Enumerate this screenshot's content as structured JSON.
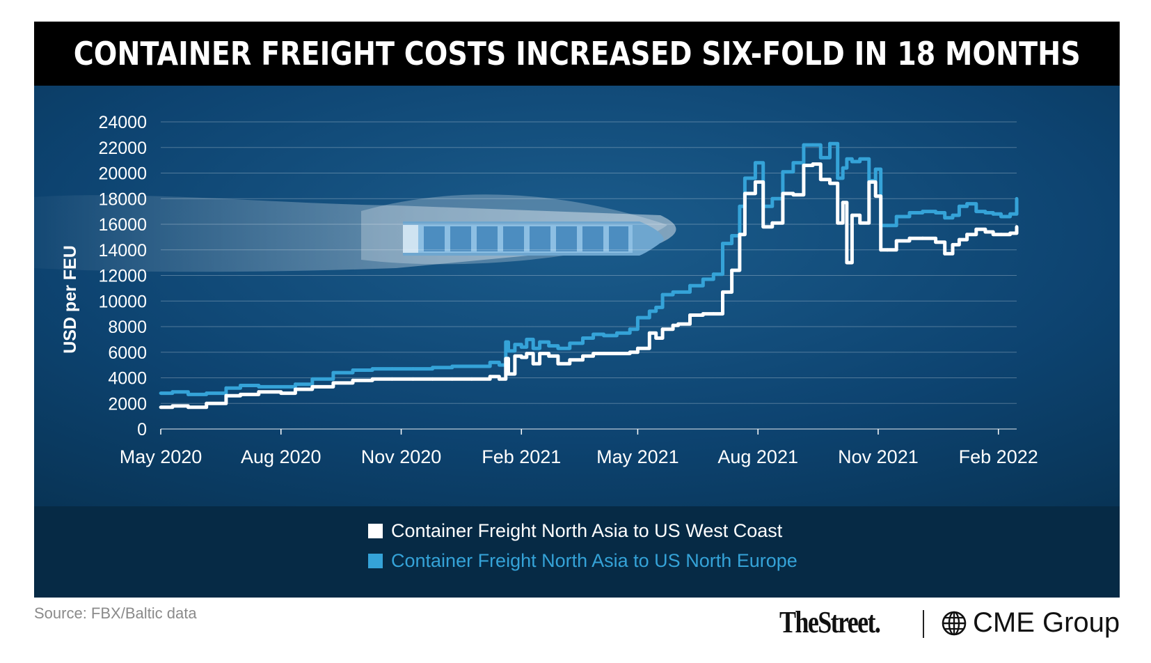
{
  "title": "CONTAINER FREIGHT COSTS INCREASED SIX-FOLD IN 18 MONTHS",
  "source": "Source: FBX/Baltic data",
  "logos": {
    "thestreet": "TheStreet.",
    "cme": "CME Group",
    "cme_icon": "globe-icon"
  },
  "colors": {
    "white_series": "#ffffff",
    "blue_series": "#35a3d8",
    "title_bg": "#000000",
    "panel_bg": "#0b3b62",
    "legend_bg": "#062a45"
  },
  "chart_data": {
    "type": "line",
    "title": "CONTAINER FREIGHT COSTS INCREASED SIX-FOLD IN 18 MONTHS",
    "xlabel": "",
    "ylabel": "USD per FEU",
    "ylim": [
      0,
      24000
    ],
    "yticks": [
      0,
      2000,
      4000,
      6000,
      8000,
      10000,
      12000,
      14000,
      16000,
      18000,
      20000,
      22000,
      24000
    ],
    "xlim": [
      "2020-05-01",
      "2022-02-15"
    ],
    "xticks": [
      {
        "label": "May 2020",
        "date": "2020-05-01"
      },
      {
        "label": "Aug 2020",
        "date": "2020-08-01"
      },
      {
        "label": "Nov 2020",
        "date": "2020-11-01"
      },
      {
        "label": "Feb 2021",
        "date": "2021-02-01"
      },
      {
        "label": "May 2021",
        "date": "2021-05-01"
      },
      {
        "label": "Aug 2021",
        "date": "2021-08-01"
      },
      {
        "label": "Nov 2021",
        "date": "2021-11-01"
      },
      {
        "label": "Feb 2022",
        "date": "2022-02-01"
      }
    ],
    "grid": true,
    "legend_position": "bottom",
    "series": [
      {
        "name": "Container Freight North Asia to US West Coast",
        "color": "#ffffff",
        "x": [
          "2020-05-01",
          "2020-05-10",
          "2020-05-22",
          "2020-06-05",
          "2020-06-20",
          "2020-07-01",
          "2020-07-15",
          "2020-08-01",
          "2020-08-12",
          "2020-08-25",
          "2020-09-10",
          "2020-09-25",
          "2020-10-10",
          "2020-10-25",
          "2020-11-10",
          "2020-11-25",
          "2020-12-10",
          "2020-12-25",
          "2021-01-08",
          "2021-01-15",
          "2021-01-20",
          "2021-01-22",
          "2021-01-27",
          "2021-02-01",
          "2021-02-05",
          "2021-02-10",
          "2021-02-15",
          "2021-02-22",
          "2021-03-01",
          "2021-03-10",
          "2021-03-20",
          "2021-03-28",
          "2021-04-05",
          "2021-04-15",
          "2021-04-25",
          "2021-05-01",
          "2021-05-10",
          "2021-05-15",
          "2021-05-20",
          "2021-05-28",
          "2021-06-01",
          "2021-06-10",
          "2021-06-20",
          "2021-06-28",
          "2021-07-05",
          "2021-07-12",
          "2021-07-18",
          "2021-07-22",
          "2021-07-30",
          "2021-08-05",
          "2021-08-12",
          "2021-08-20",
          "2021-08-28",
          "2021-09-05",
          "2021-09-12",
          "2021-09-18",
          "2021-09-25",
          "2021-10-01",
          "2021-10-05",
          "2021-10-08",
          "2021-10-12",
          "2021-10-18",
          "2021-10-25",
          "2021-10-30",
          "2021-11-03",
          "2021-11-08",
          "2021-11-15",
          "2021-11-25",
          "2021-12-05",
          "2021-12-15",
          "2021-12-22",
          "2021-12-28",
          "2022-01-02",
          "2022-01-08",
          "2022-01-15",
          "2022-01-22",
          "2022-01-28",
          "2022-02-03",
          "2022-02-10",
          "2022-02-15"
        ],
        "values": [
          1700,
          1800,
          1700,
          2000,
          2600,
          2700,
          2900,
          2800,
          3100,
          3300,
          3600,
          3800,
          3900,
          3900,
          3900,
          3900,
          3900,
          3900,
          4100,
          3900,
          5500,
          4300,
          5700,
          5600,
          5900,
          5100,
          5900,
          5700,
          5100,
          5400,
          5700,
          5900,
          5900,
          5900,
          6000,
          6300,
          7500,
          7100,
          7800,
          8100,
          8200,
          8900,
          9000,
          9000,
          10700,
          12400,
          15200,
          18400,
          19300,
          15800,
          16100,
          18400,
          18300,
          20600,
          20700,
          19500,
          19200,
          16100,
          17700,
          13000,
          16700,
          16100,
          19300,
          18200,
          14000,
          14000,
          14700,
          14900,
          14900,
          14600,
          13700,
          14400,
          14800,
          15200,
          15600,
          15400,
          15200,
          15200,
          15300,
          15800
        ]
      },
      {
        "name": "Container Freight North Asia to US North Europe",
        "color": "#35a3d8",
        "x": [
          "2020-05-01",
          "2020-05-10",
          "2020-05-22",
          "2020-06-05",
          "2020-06-20",
          "2020-07-01",
          "2020-07-15",
          "2020-08-01",
          "2020-08-12",
          "2020-08-25",
          "2020-09-10",
          "2020-09-25",
          "2020-10-10",
          "2020-10-25",
          "2020-11-10",
          "2020-11-25",
          "2020-12-10",
          "2020-12-25",
          "2021-01-08",
          "2021-01-15",
          "2021-01-20",
          "2021-01-22",
          "2021-01-27",
          "2021-02-01",
          "2021-02-05",
          "2021-02-10",
          "2021-02-15",
          "2021-02-22",
          "2021-03-01",
          "2021-03-10",
          "2021-03-20",
          "2021-03-28",
          "2021-04-05",
          "2021-04-15",
          "2021-04-25",
          "2021-05-01",
          "2021-05-10",
          "2021-05-15",
          "2021-05-20",
          "2021-05-28",
          "2021-06-01",
          "2021-06-10",
          "2021-06-20",
          "2021-06-28",
          "2021-07-05",
          "2021-07-12",
          "2021-07-18",
          "2021-07-22",
          "2021-07-30",
          "2021-08-05",
          "2021-08-12",
          "2021-08-20",
          "2021-08-28",
          "2021-09-05",
          "2021-09-12",
          "2021-09-18",
          "2021-09-25",
          "2021-10-01",
          "2021-10-05",
          "2021-10-08",
          "2021-10-12",
          "2021-10-18",
          "2021-10-25",
          "2021-10-30",
          "2021-11-03",
          "2021-11-08",
          "2021-11-15",
          "2021-11-25",
          "2021-12-05",
          "2021-12-15",
          "2021-12-22",
          "2021-12-28",
          "2022-01-02",
          "2022-01-08",
          "2022-01-15",
          "2022-01-22",
          "2022-01-28",
          "2022-02-03",
          "2022-02-10",
          "2022-02-15"
        ],
        "values": [
          2800,
          2900,
          2700,
          2800,
          3200,
          3400,
          3300,
          3300,
          3500,
          3900,
          4400,
          4600,
          4700,
          4700,
          4700,
          4800,
          4900,
          4900,
          5200,
          5000,
          6800,
          6100,
          6600,
          6400,
          7000,
          6300,
          6800,
          6500,
          6300,
          6700,
          7100,
          7400,
          7300,
          7500,
          7800,
          8700,
          9200,
          9500,
          10500,
          10700,
          10700,
          11200,
          11700,
          12100,
          14500,
          15100,
          17400,
          19600,
          20800,
          17400,
          18000,
          20100,
          20800,
          22200,
          22200,
          21200,
          22300,
          19600,
          20400,
          21100,
          20900,
          21100,
          19400,
          20300,
          15900,
          15900,
          16600,
          16900,
          17000,
          16900,
          16500,
          16700,
          17400,
          17600,
          17000,
          16900,
          16800,
          16600,
          16800,
          18000
        ]
      }
    ]
  }
}
